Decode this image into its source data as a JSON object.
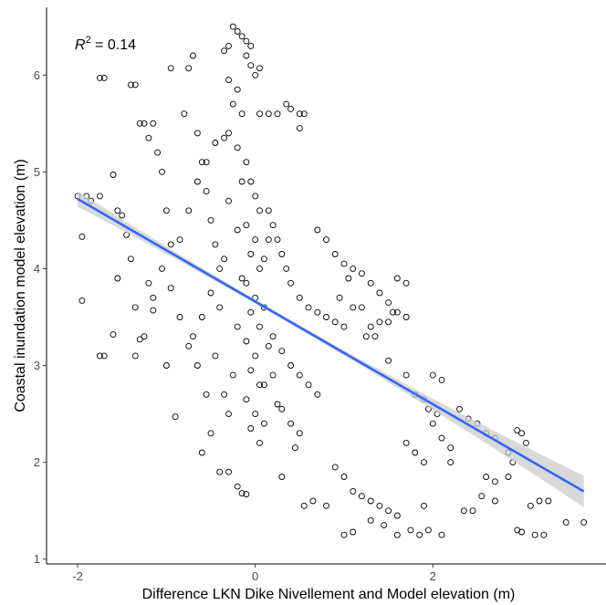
{
  "chart_data": {
    "type": "scatter",
    "title": "",
    "xlabel": "Difference LKN Dike Nivellement and Model elevation (m)",
    "ylabel": "Coastal inundation model elevation (m)",
    "xlim": [
      -2.35,
      3.95
    ],
    "ylim": [
      0.95,
      6.7
    ],
    "x_ticks": [
      -2,
      0,
      2
    ],
    "y_ticks": [
      1,
      2,
      3,
      4,
      5,
      6
    ],
    "annotation": {
      "r_symbol": "R",
      "exponent": "2",
      "value": " = 0.14"
    },
    "regression": {
      "intercept": 3.66,
      "slope": -0.53,
      "x_range": [
        -2.0,
        3.7
      ],
      "se_band": true
    },
    "colors": {
      "points": "#000000",
      "fit_line": "#3366FF",
      "ci_band": "#cccccc"
    },
    "grid": false,
    "series": [
      {
        "values_sample_description": "",
        "points": [
          [
            -2.0,
            4.75
          ],
          [
            -1.9,
            4.75
          ],
          [
            -1.85,
            4.7
          ],
          [
            -1.75,
            4.75
          ],
          [
            -1.95,
            4.33
          ],
          [
            -1.95,
            3.67
          ],
          [
            -1.75,
            5.97
          ],
          [
            -1.7,
            5.97
          ],
          [
            -1.6,
            4.97
          ],
          [
            -1.55,
            4.6
          ],
          [
            -1.5,
            4.55
          ],
          [
            -1.45,
            4.35
          ],
          [
            -1.7,
            3.1
          ],
          [
            -1.75,
            3.1
          ],
          [
            -1.6,
            3.32
          ],
          [
            -1.55,
            3.9
          ],
          [
            -1.4,
            4.1
          ],
          [
            -1.35,
            3.6
          ],
          [
            -1.4,
            5.9
          ],
          [
            -1.35,
            5.9
          ],
          [
            -1.3,
            5.5
          ],
          [
            -1.25,
            5.5
          ],
          [
            -1.2,
            5.35
          ],
          [
            -1.15,
            5.5
          ],
          [
            -1.1,
            5.2
          ],
          [
            -1.05,
            5.0
          ],
          [
            -1.0,
            4.6
          ],
          [
            -0.95,
            4.25
          ],
          [
            -1.2,
            3.85
          ],
          [
            -1.15,
            3.57
          ],
          [
            -1.3,
            3.27
          ],
          [
            -1.0,
            3.0
          ],
          [
            -0.9,
            2.47
          ],
          [
            -0.95,
            6.07
          ],
          [
            -0.75,
            6.07
          ],
          [
            -0.7,
            6.2
          ],
          [
            -0.8,
            5.6
          ],
          [
            -0.65,
            5.4
          ],
          [
            -0.6,
            5.1
          ],
          [
            -0.55,
            4.8
          ],
          [
            -0.5,
            4.5
          ],
          [
            -0.45,
            4.25
          ],
          [
            -0.4,
            4.0
          ],
          [
            -0.5,
            3.75
          ],
          [
            -0.6,
            3.5
          ],
          [
            -0.7,
            3.3
          ],
          [
            -0.65,
            3.0
          ],
          [
            -0.55,
            2.7
          ],
          [
            -0.5,
            2.3
          ],
          [
            -0.6,
            2.1
          ],
          [
            -0.4,
            1.9
          ],
          [
            -0.3,
            1.9
          ],
          [
            -0.2,
            1.75
          ],
          [
            -0.15,
            1.68
          ],
          [
            -0.1,
            1.67
          ],
          [
            -0.35,
            6.25
          ],
          [
            -0.3,
            6.3
          ],
          [
            -0.25,
            6.5
          ],
          [
            -0.2,
            6.45
          ],
          [
            -0.15,
            6.4
          ],
          [
            -0.1,
            6.35
          ],
          [
            -0.05,
            6.3
          ],
          [
            -0.1,
            6.2
          ],
          [
            -0.05,
            6.1
          ],
          [
            0.0,
            6.0
          ],
          [
            0.05,
            6.07
          ],
          [
            -0.3,
            5.95
          ],
          [
            -0.2,
            5.85
          ],
          [
            -0.25,
            5.7
          ],
          [
            -0.15,
            5.6
          ],
          [
            0.05,
            5.6
          ],
          [
            0.25,
            5.6
          ],
          [
            0.15,
            5.6
          ],
          [
            0.35,
            5.7
          ],
          [
            0.5,
            5.6
          ],
          [
            0.4,
            5.65
          ],
          [
            0.5,
            5.45
          ],
          [
            0.55,
            5.6
          ],
          [
            -0.3,
            5.4
          ],
          [
            -0.2,
            5.25
          ],
          [
            -0.1,
            5.1
          ],
          [
            -0.05,
            4.9
          ],
          [
            0.0,
            4.75
          ],
          [
            0.05,
            4.6
          ],
          [
            -0.1,
            4.45
          ],
          [
            0.0,
            4.3
          ],
          [
            -0.05,
            4.15
          ],
          [
            0.05,
            4.0
          ],
          [
            -0.1,
            3.85
          ],
          [
            0.0,
            3.7
          ],
          [
            -0.05,
            3.55
          ],
          [
            0.05,
            3.4
          ],
          [
            -0.1,
            3.25
          ],
          [
            0.0,
            3.1
          ],
          [
            -0.05,
            2.95
          ],
          [
            0.05,
            2.8
          ],
          [
            -0.1,
            2.65
          ],
          [
            0.0,
            2.5
          ],
          [
            -0.05,
            2.35
          ],
          [
            0.05,
            2.2
          ],
          [
            0.15,
            4.6
          ],
          [
            0.2,
            4.45
          ],
          [
            0.25,
            4.3
          ],
          [
            0.3,
            4.15
          ],
          [
            0.35,
            4.0
          ],
          [
            0.4,
            3.85
          ],
          [
            0.5,
            3.7
          ],
          [
            0.6,
            3.6
          ],
          [
            0.7,
            3.55
          ],
          [
            0.8,
            3.5
          ],
          [
            0.9,
            3.45
          ],
          [
            1.0,
            3.4
          ],
          [
            0.2,
            3.3
          ],
          [
            0.3,
            3.15
          ],
          [
            0.4,
            3.0
          ],
          [
            0.5,
            2.9
          ],
          [
            0.6,
            2.8
          ],
          [
            0.7,
            2.7
          ],
          [
            0.3,
            2.55
          ],
          [
            0.4,
            2.4
          ],
          [
            0.5,
            2.3
          ],
          [
            0.45,
            2.15
          ],
          [
            0.3,
            1.85
          ],
          [
            0.55,
            1.55
          ],
          [
            0.65,
            1.6
          ],
          [
            0.8,
            1.55
          ],
          [
            0.7,
            4.4
          ],
          [
            0.8,
            4.3
          ],
          [
            0.9,
            4.15
          ],
          [
            1.0,
            4.05
          ],
          [
            1.1,
            4.0
          ],
          [
            1.2,
            3.95
          ],
          [
            1.3,
            3.85
          ],
          [
            1.4,
            3.75
          ],
          [
            1.5,
            3.65
          ],
          [
            1.6,
            3.55
          ],
          [
            1.7,
            3.5
          ],
          [
            1.3,
            3.4
          ],
          [
            1.4,
            3.45
          ],
          [
            1.5,
            3.45
          ],
          [
            1.55,
            3.55
          ],
          [
            0.9,
            1.95
          ],
          [
            1.0,
            1.85
          ],
          [
            1.1,
            1.7
          ],
          [
            1.2,
            1.65
          ],
          [
            1.3,
            1.6
          ],
          [
            1.4,
            1.55
          ],
          [
            1.5,
            1.5
          ],
          [
            1.6,
            1.45
          ],
          [
            1.0,
            1.25
          ],
          [
            1.1,
            1.28
          ],
          [
            1.3,
            1.4
          ],
          [
            1.45,
            1.35
          ],
          [
            1.6,
            1.25
          ],
          [
            1.75,
            1.3
          ],
          [
            1.85,
            1.25
          ],
          [
            1.7,
            2.2
          ],
          [
            1.8,
            2.1
          ],
          [
            1.9,
            2.0
          ],
          [
            2.0,
            2.4
          ],
          [
            2.1,
            2.25
          ],
          [
            2.2,
            2.15
          ],
          [
            2.0,
            2.9
          ],
          [
            2.1,
            2.85
          ],
          [
            2.3,
            2.55
          ],
          [
            2.4,
            2.45
          ],
          [
            1.5,
            3.05
          ],
          [
            1.7,
            2.9
          ],
          [
            1.9,
            2.65
          ],
          [
            2.05,
            2.5
          ],
          [
            1.9,
            1.55
          ],
          [
            1.95,
            1.3
          ],
          [
            2.1,
            1.25
          ],
          [
            2.2,
            2.0
          ],
          [
            2.5,
            2.4
          ],
          [
            2.6,
            2.3
          ],
          [
            2.7,
            2.25
          ],
          [
            2.85,
            2.1
          ],
          [
            2.6,
            1.85
          ],
          [
            2.7,
            1.8
          ],
          [
            2.85,
            1.85
          ],
          [
            2.9,
            2.0
          ],
          [
            3.0,
            2.3
          ],
          [
            2.95,
            2.33
          ],
          [
            3.05,
            2.2
          ],
          [
            2.55,
            1.65
          ],
          [
            2.7,
            1.6
          ],
          [
            3.1,
            1.55
          ],
          [
            3.2,
            1.6
          ],
          [
            2.35,
            1.5
          ],
          [
            2.45,
            1.5
          ],
          [
            2.95,
            1.3
          ],
          [
            3.0,
            1.28
          ],
          [
            3.15,
            1.25
          ],
          [
            3.25,
            1.25
          ],
          [
            3.3,
            1.6
          ],
          [
            3.5,
            1.38
          ],
          [
            3.7,
            1.38
          ],
          [
            -1.35,
            3.1
          ],
          [
            -1.25,
            3.3
          ],
          [
            -1.15,
            3.7
          ],
          [
            -1.05,
            4.0
          ],
          [
            -0.95,
            3.8
          ],
          [
            -0.85,
            3.5
          ],
          [
            -0.75,
            3.2
          ],
          [
            -0.85,
            4.3
          ],
          [
            -0.75,
            4.6
          ],
          [
            -0.65,
            4.9
          ],
          [
            -0.55,
            5.1
          ],
          [
            -0.45,
            5.3
          ],
          [
            -0.35,
            5.35
          ],
          [
            -0.3,
            4.7
          ],
          [
            -0.35,
            4.1
          ],
          [
            -0.4,
            3.6
          ],
          [
            -0.45,
            3.1
          ],
          [
            -0.35,
            2.7
          ],
          [
            -0.3,
            2.5
          ],
          [
            -0.25,
            2.9
          ],
          [
            -0.2,
            3.4
          ],
          [
            -0.15,
            3.9
          ],
          [
            -0.2,
            4.4
          ],
          [
            -0.15,
            4.9
          ],
          [
            0.1,
            3.6
          ],
          [
            0.15,
            3.2
          ],
          [
            0.2,
            2.9
          ],
          [
            0.25,
            2.6
          ],
          [
            0.1,
            2.4
          ],
          [
            0.1,
            2.8
          ],
          [
            0.1,
            4.1
          ],
          [
            0.15,
            4.3
          ],
          [
            1.1,
            3.6
          ],
          [
            1.2,
            3.6
          ],
          [
            0.95,
            3.7
          ],
          [
            1.05,
            3.9
          ],
          [
            1.25,
            3.3
          ],
          [
            1.35,
            3.3
          ],
          [
            1.6,
            3.9
          ],
          [
            1.7,
            3.85
          ],
          [
            1.8,
            2.7
          ],
          [
            1.95,
            2.55
          ]
        ]
      }
    ]
  }
}
